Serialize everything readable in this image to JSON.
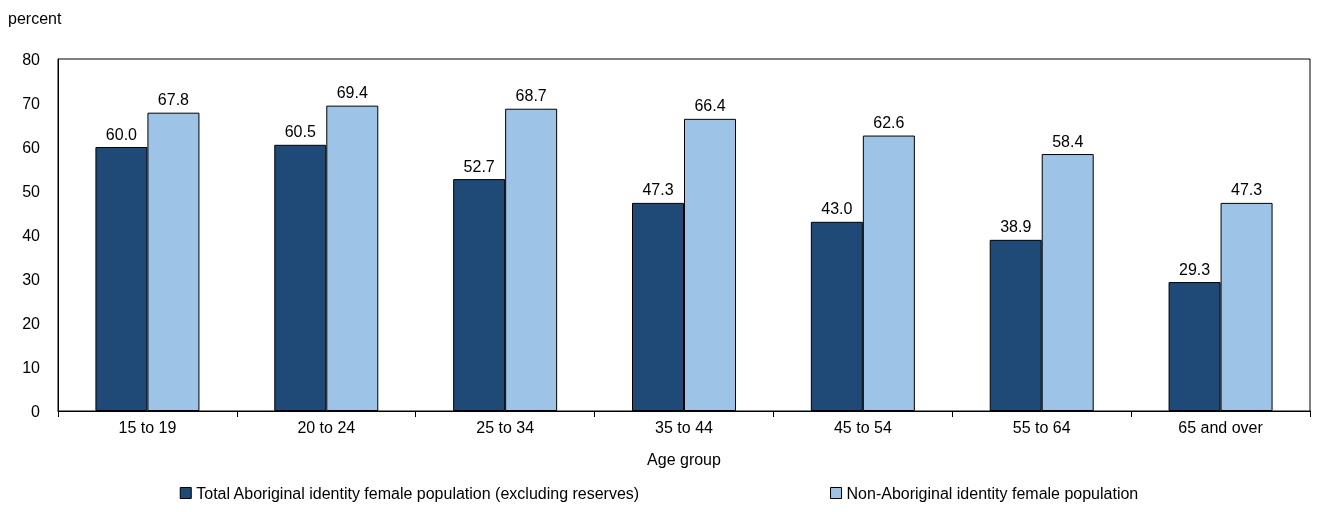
{
  "chart_data": {
    "type": "bar",
    "ylabel": "percent",
    "xlabel": "Age group",
    "categories": [
      "15 to 19",
      "20 to 24",
      "25 to 34",
      "35 to 44",
      "45 to 54",
      "55 to 64",
      "65 and over"
    ],
    "series": [
      {
        "name": "Total Aboriginal identity female population (excluding reserves)",
        "color": "#1f4a78",
        "values": [
          60.0,
          60.5,
          52.7,
          47.3,
          43.0,
          38.9,
          29.3
        ],
        "value_labels": [
          "60.0",
          "60.5",
          "52.7",
          "47.3",
          "43.0",
          "38.9",
          "29.3"
        ]
      },
      {
        "name": "Non-Aboriginal identity female population",
        "color": "#9dc3e6",
        "values": [
          67.8,
          69.4,
          68.7,
          66.4,
          62.6,
          58.4,
          47.3
        ],
        "value_labels": [
          "67.8",
          "69.4",
          "68.7",
          "66.4",
          "62.6",
          "58.4",
          "47.3"
        ]
      }
    ],
    "ylim": [
      0,
      80
    ],
    "yticks": [
      0,
      10,
      20,
      30,
      40,
      50,
      60,
      70,
      80
    ],
    "grid": false,
    "legend": "bottom"
  }
}
